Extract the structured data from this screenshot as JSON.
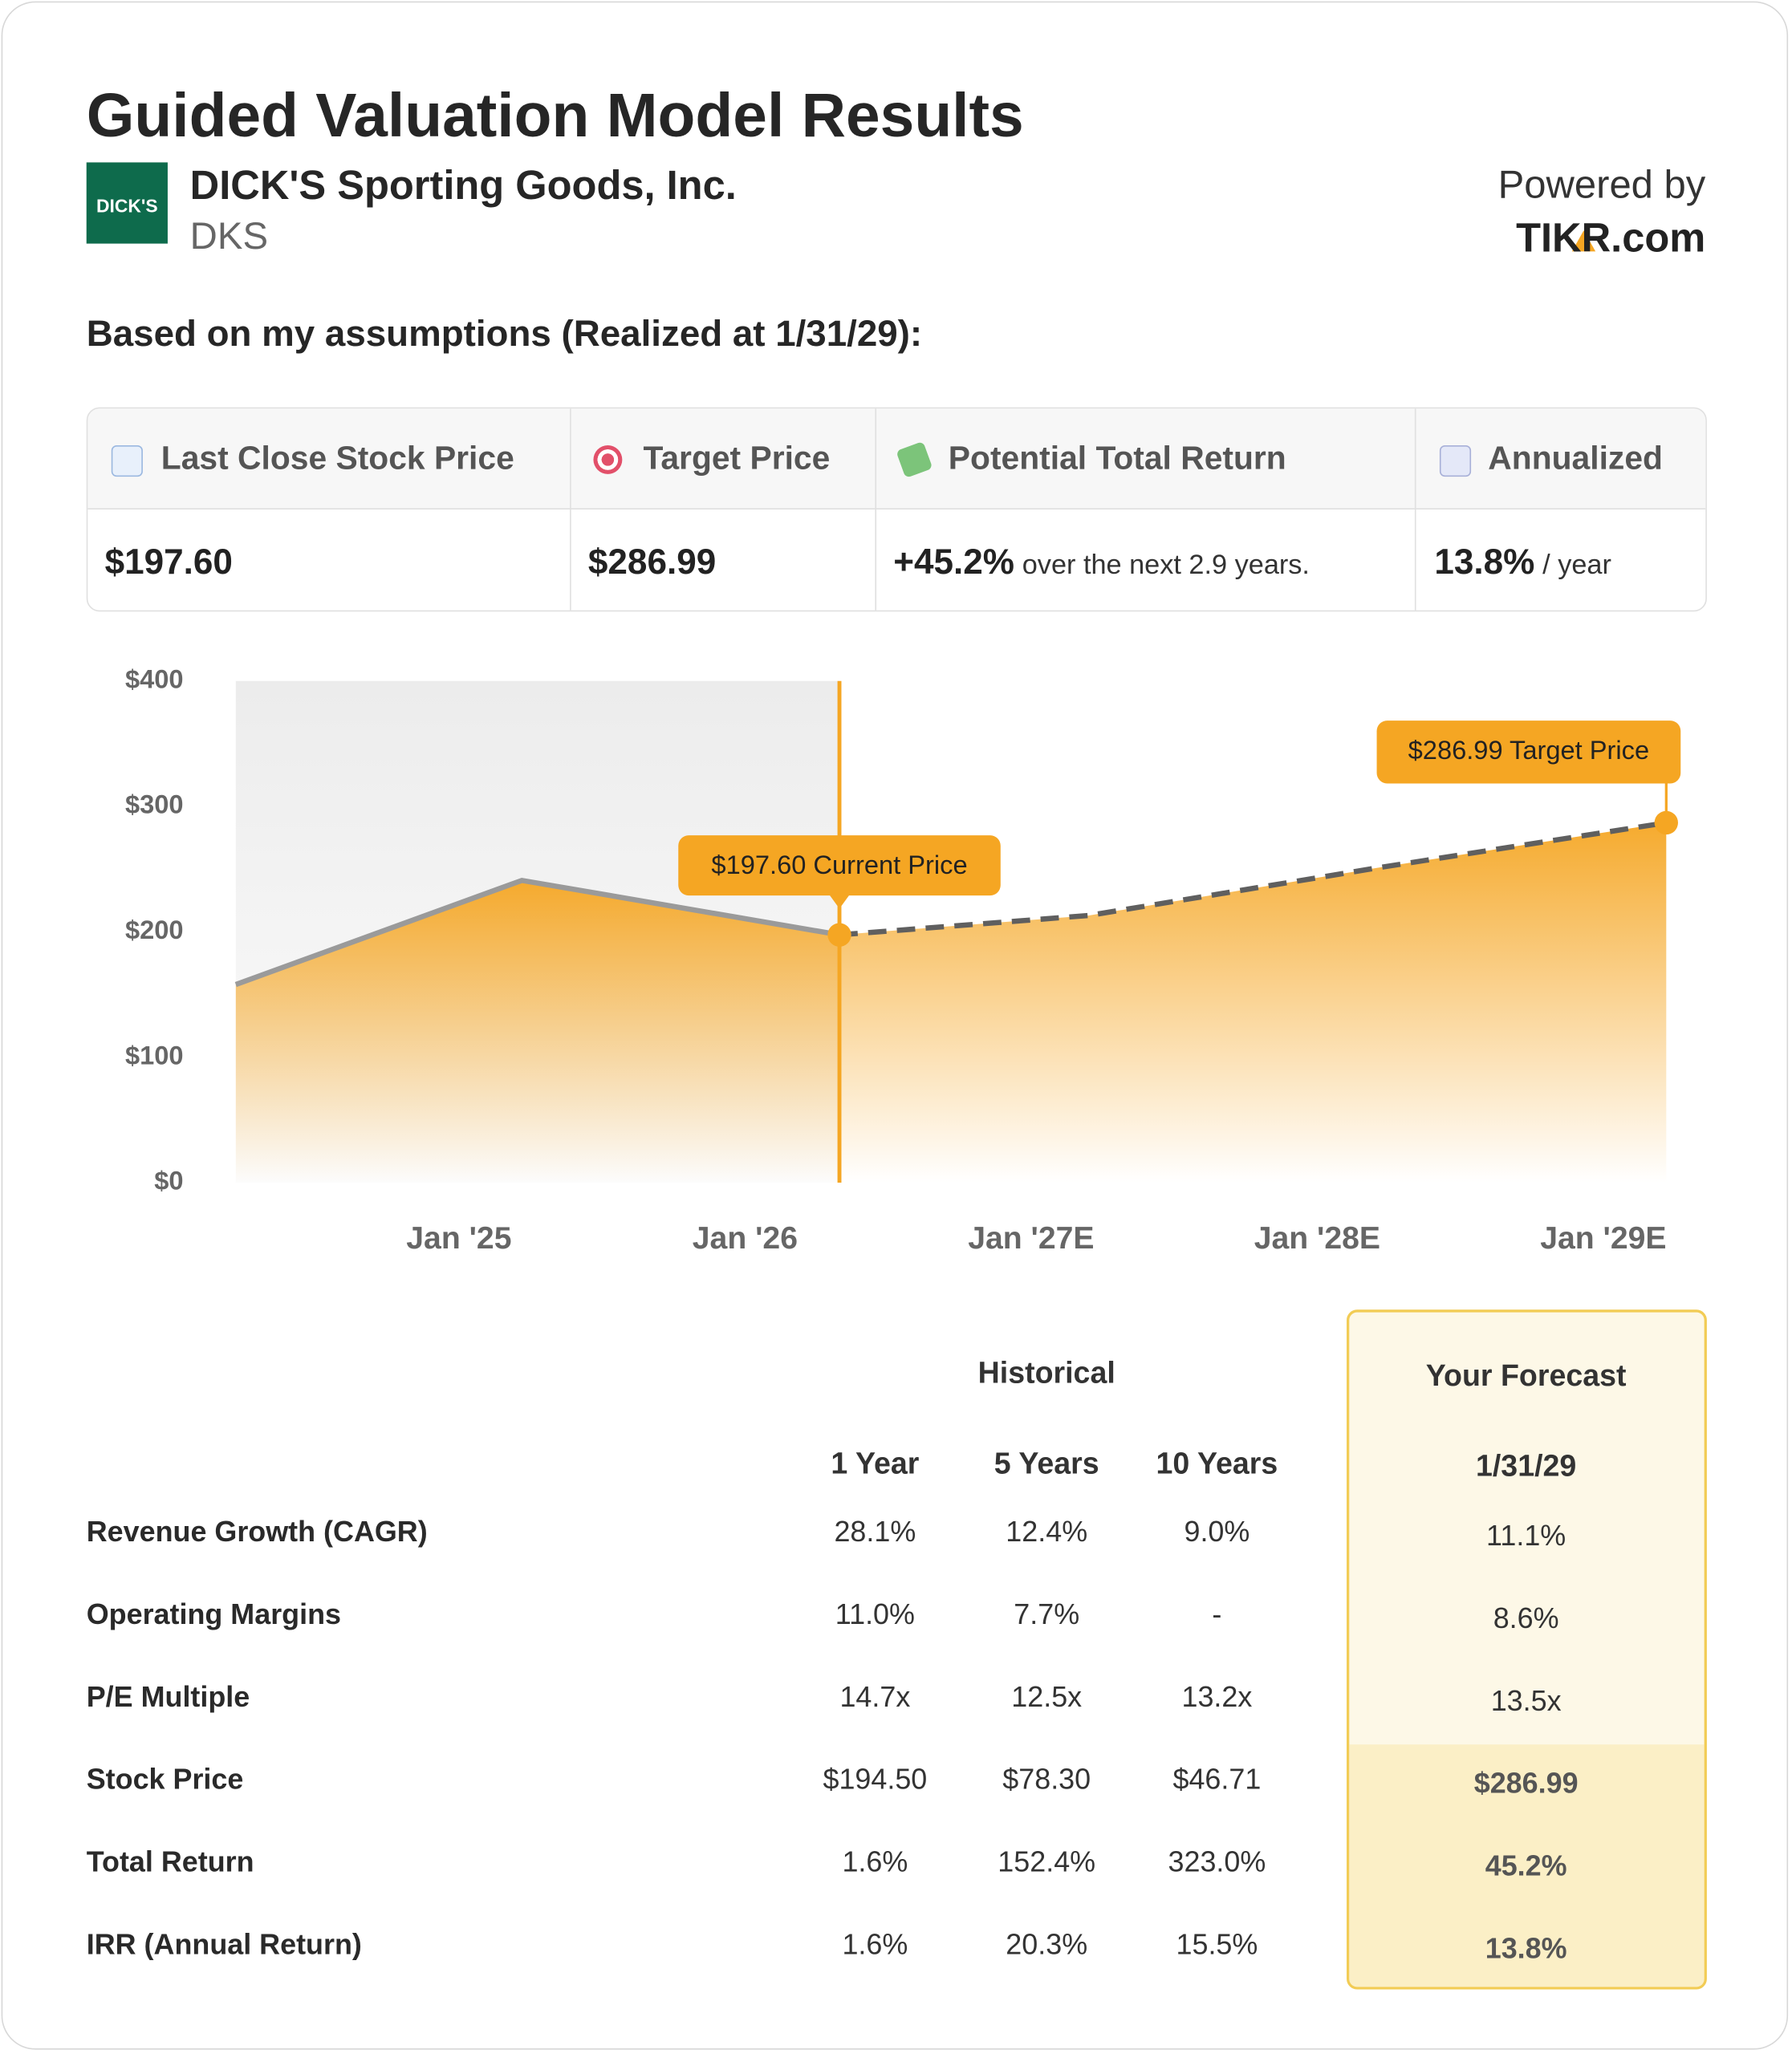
{
  "header": {
    "title": "Guided Valuation Model Results",
    "logo_text": "DICK'S",
    "company": "DICK'S Sporting Goods, Inc.",
    "ticker": "DKS",
    "powered_by": "Powered by",
    "brand": "TIKR.com"
  },
  "subtitle": "Based on my assumptions (Realized at 1/31/29):",
  "metrics": [
    {
      "label": "Last Close Stock Price",
      "value": "$197.60"
    },
    {
      "label": "Target Price",
      "value": "$286.99"
    },
    {
      "label": "Potential Total Return",
      "value": "+45.2%",
      "note": "over the next 2.9 years."
    },
    {
      "label": "Annualized",
      "value": "13.8%",
      "note": "/ year"
    }
  ],
  "chart_data": {
    "type": "area",
    "fill_color": "#f5a623",
    "xlim": [
      2024.22,
      2029.22
    ],
    "xticks": [
      {
        "value": 2025,
        "label": "Jan '25"
      },
      {
        "value": 2026,
        "label": "Jan '26"
      },
      {
        "value": 2027,
        "label": "Jan '27E"
      },
      {
        "value": 2028,
        "label": "Jan '28E"
      },
      {
        "value": 2029,
        "label": "Jan '29E"
      }
    ],
    "ylim": [
      0,
      400
    ],
    "yticks": [
      {
        "value": 0,
        "label": "$0"
      },
      {
        "value": 100,
        "label": "$100"
      },
      {
        "value": 200,
        "label": "$200"
      },
      {
        "value": 300,
        "label": "$300"
      },
      {
        "value": 400,
        "label": "$400"
      }
    ],
    "series": [
      {
        "color": "#9a9a9a",
        "style": "solid",
        "x": [
          2024.22,
          2025.22,
          2026.33
        ],
        "values": [
          158,
          241,
          197.6
        ]
      },
      {
        "color": "#5f5f5f",
        "style": "dashed",
        "x": [
          2026.33,
          2027.2,
          2028.21,
          2029.22
        ],
        "values": [
          197.6,
          213,
          251,
          286.99
        ]
      }
    ],
    "annotations": {
      "current": "$197.60 Current Price",
      "target": "$286.99 Target Price"
    }
  },
  "table": {
    "group_header": "Historical",
    "forecast_header": "Your Forecast",
    "columns": [
      "1 Year",
      "5 Years",
      "10 Years",
      "1/31/29"
    ],
    "rows": [
      {
        "label": "Revenue Growth (CAGR)",
        "values": [
          "28.1%",
          "12.4%",
          "9.0%",
          "11.1%"
        ]
      },
      {
        "label": "Operating Margins",
        "values": [
          "11.0%",
          "7.7%",
          "-",
          "8.6%"
        ]
      },
      {
        "label": "P/E Multiple",
        "values": [
          "14.7x",
          "12.5x",
          "13.2x",
          "13.5x"
        ]
      },
      {
        "label": "Stock Price",
        "values": [
          "$194.50",
          "$78.30",
          "$46.71",
          "$286.99"
        ]
      },
      {
        "label": "Total Return",
        "values": [
          "1.6%",
          "152.4%",
          "323.0%",
          "45.2%"
        ]
      },
      {
        "label": "IRR (Annual Return)",
        "values": [
          "1.6%",
          "20.3%",
          "15.5%",
          "13.8%"
        ]
      }
    ]
  }
}
